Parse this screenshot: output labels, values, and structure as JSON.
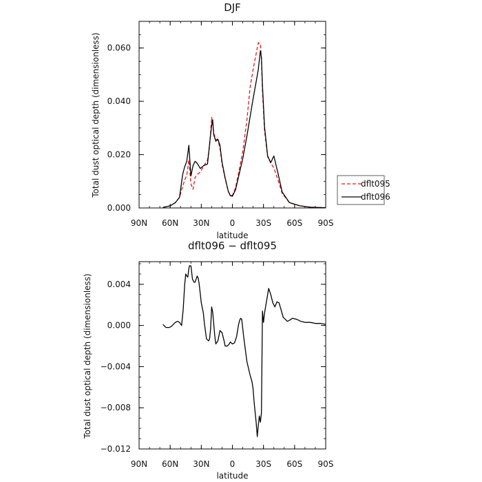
{
  "chart_data": [
    {
      "type": "line",
      "title": "DJF",
      "xlabel": "latitude",
      "ylabel": "Total dust optical depth (dimensionless)",
      "xlim": [
        90,
        -90
      ],
      "ylim": [
        0,
        0.07
      ],
      "x_ticks": [
        90,
        60,
        30,
        0,
        -30,
        -60,
        -90
      ],
      "x_tick_labels": [
        "90N",
        "60N",
        "30N",
        "0",
        "30S",
        "60S",
        "90S"
      ],
      "y_ticks": [
        0,
        0.02,
        0.04,
        0.06
      ],
      "y_tick_labels": [
        "0.000",
        "0.020",
        "0.040",
        "0.060"
      ],
      "legend_position": "right",
      "series": [
        {
          "name": "dflt095",
          "color": "#e8141a",
          "dash": "dashed",
          "x": [
            67,
            60,
            55,
            51,
            48,
            46,
            44,
            42,
            40,
            38,
            36,
            34,
            31,
            28,
            24,
            22,
            20,
            19,
            18,
            16,
            14,
            12,
            10,
            7,
            4,
            2,
            0,
            -3,
            -6,
            -10,
            -14,
            -17,
            -20,
            -23,
            -25,
            -27,
            -28,
            -29,
            -31,
            -34,
            -37,
            -40,
            -44,
            -48,
            -55,
            -65,
            -75,
            -90
          ],
          "values": [
            0.0002,
            0.0008,
            0.002,
            0.004,
            0.008,
            0.0105,
            0.0123,
            0.018,
            0.009,
            0.007,
            0.0115,
            0.0125,
            0.0135,
            0.0155,
            0.018,
            0.023,
            0.034,
            0.032,
            0.028,
            0.0258,
            0.0255,
            0.0225,
            0.0165,
            0.011,
            0.0062,
            0.0047,
            0.0047,
            0.0075,
            0.0132,
            0.0212,
            0.033,
            0.045,
            0.052,
            0.058,
            0.062,
            0.0615,
            0.056,
            0.044,
            0.029,
            0.0192,
            0.0168,
            0.015,
            0.0105,
            0.0055,
            0.002,
            0.0008,
            0.0003,
            0.0001
          ]
        },
        {
          "name": "dflt096",
          "color": "#000000",
          "dash": "solid",
          "x": [
            67,
            60,
            55,
            51,
            48,
            46,
            44,
            42,
            40,
            38,
            36,
            34,
            31,
            28,
            24,
            22,
            20,
            19,
            18,
            16,
            14,
            12,
            10,
            7,
            4,
            2,
            0,
            -3,
            -6,
            -10,
            -14,
            -17,
            -20,
            -23,
            -25,
            -27,
            -28,
            -29,
            -31,
            -34,
            -37,
            -40,
            -44,
            -48,
            -55,
            -65,
            -75,
            -90
          ],
          "values": [
            0.0002,
            0.0008,
            0.002,
            0.004,
            0.0125,
            0.0155,
            0.0175,
            0.0235,
            0.012,
            0.0158,
            0.0175,
            0.0168,
            0.0148,
            0.0158,
            0.0165,
            0.024,
            0.031,
            0.033,
            0.0275,
            0.025,
            0.0258,
            0.0235,
            0.0172,
            0.0113,
            0.0063,
            0.0046,
            0.0044,
            0.0068,
            0.0118,
            0.0185,
            0.027,
            0.034,
            0.041,
            0.0475,
            0.052,
            0.059,
            0.0565,
            0.046,
            0.0305,
            0.0195,
            0.017,
            0.0195,
            0.013,
            0.006,
            0.002,
            0.0008,
            0.0003,
            0.0001
          ]
        }
      ]
    },
    {
      "type": "line",
      "title": "dflt096 − dflt095",
      "xlabel": "latitude",
      "ylabel": "Total dust optical depth (dimensionless)",
      "xlim": [
        90,
        -90
      ],
      "ylim": [
        -0.012,
        0.0062
      ],
      "x_ticks": [
        90,
        60,
        30,
        0,
        -30,
        -60,
        -90
      ],
      "x_tick_labels": [
        "90N",
        "60N",
        "30N",
        "0",
        "30S",
        "60S",
        "90S"
      ],
      "y_ticks": [
        -0.012,
        -0.008,
        -0.004,
        0,
        0.004
      ],
      "y_tick_labels": [
        "−0.012",
        "−0.008",
        "−0.004",
        "0.000",
        "0.004"
      ],
      "series": [
        {
          "name": "",
          "color": "#000000",
          "dash": "solid",
          "x": [
            67,
            64,
            61,
            59,
            57,
            55,
            53,
            51,
            49,
            47.5,
            46,
            45,
            44,
            43,
            42,
            41.5,
            40,
            38.5,
            37,
            36,
            34,
            33,
            32,
            30,
            28,
            27,
            25,
            23,
            22,
            21,
            20,
            19,
            17,
            16,
            14,
            13,
            12,
            10,
            8,
            7,
            5,
            3,
            2,
            0,
            -2,
            -4,
            -5,
            -6,
            -7,
            -8,
            -9,
            -11,
            -14,
            -17,
            -19,
            -20,
            -21,
            -22,
            -23,
            -24,
            -25,
            -26,
            -27,
            -28,
            -29,
            -30,
            -31,
            -33,
            -35,
            -37,
            -39,
            -41,
            -43,
            -45,
            -47,
            -49,
            -51,
            -53,
            -55,
            -58,
            -62,
            -66,
            -70,
            -75,
            -80,
            -85,
            -90
          ],
          "values": [
            0.0001,
            -0.0002,
            -0.0002,
            -0.0001,
            0.0001,
            0.0003,
            0.0004,
            0.0003,
            0,
            0.0015,
            0.004,
            0.005,
            0.0048,
            0.0047,
            0.0055,
            0.0058,
            0.0058,
            0.0045,
            0.0042,
            0.0042,
            0.0048,
            0.0046,
            0.004,
            0.0022,
            0.0012,
            0.0002,
            -0.0013,
            -0.0015,
            -0.0013,
            -0.0003,
            0.0018,
            0.0013,
            -0.001,
            -0.0018,
            -0.0015,
            -0.001,
            -0.0005,
            -0.0007,
            -0.0015,
            -0.002,
            -0.002,
            -0.0018,
            -0.0016,
            -0.0018,
            -0.0017,
            -0.0011,
            -0.0005,
            0.0001,
            0.0005,
            0.0007,
            0.0006,
            -0.0012,
            -0.0035,
            -0.0048,
            -0.0055,
            -0.0062,
            -0.0075,
            -0.0085,
            -0.0095,
            -0.0108,
            -0.0097,
            -0.0088,
            -0.0094,
            -0.0085,
            0.0014,
            0.0003,
            0.0012,
            0.0024,
            0.0036,
            0.003,
            0.0022,
            0.0018,
            0.0023,
            0.0022,
            0.0015,
            0.0008,
            0.0006,
            0.0004,
            0.0005,
            0.0007,
            0.0006,
            0.0004,
            0.0003,
            0.0003,
            0.0002,
            0.0002,
            0.0001
          ]
        }
      ]
    }
  ]
}
